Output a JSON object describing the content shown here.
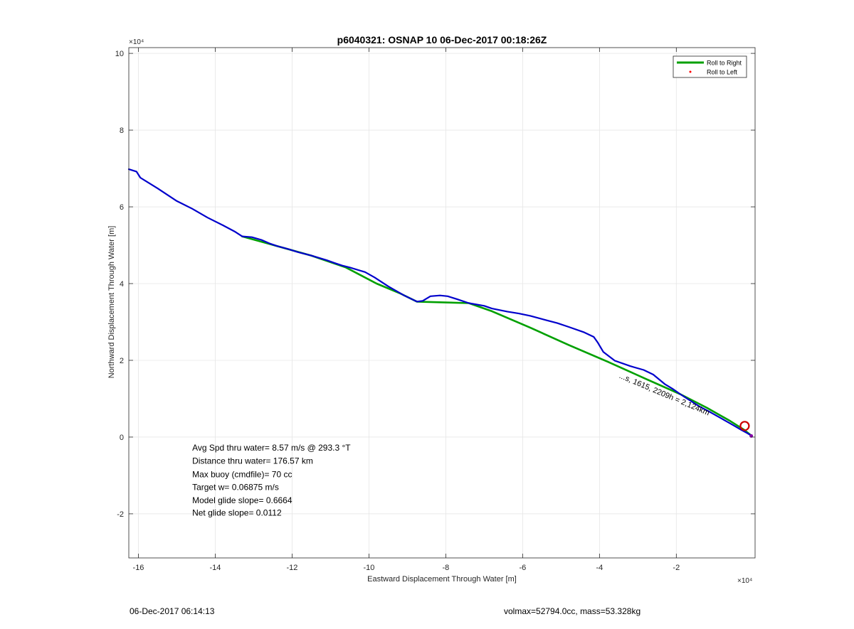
{
  "footer": {
    "left": "06-Dec-2017 06:14:13",
    "right": "volmax=52794.0cc, mass=53.328kg"
  },
  "chart_data": {
    "type": "line",
    "title": "p6040321: OSNAP 10 06-Dec-2017 00:18:26Z",
    "xlabel": "Eastward Displacement Through Water [m]",
    "ylabel": "Northward Displacement Through Water [m]",
    "x_exponent_label": "×10⁴",
    "y_exponent_label": "×10⁴",
    "xlim": [
      -16.25,
      0.05
    ],
    "ylim": [
      -3.15,
      10.15
    ],
    "xticks": [
      -16,
      -14,
      -12,
      -10,
      -8,
      -6,
      -4,
      -2
    ],
    "yticks": [
      -2,
      0,
      2,
      4,
      6,
      8,
      10
    ],
    "grid": true,
    "legend": {
      "placement": "top-right",
      "entries": [
        {
          "label": "Roll to Right",
          "color": "#00a000",
          "style": "line"
        },
        {
          "label": "Roll to Left",
          "color": "#ff0000",
          "style": "point"
        }
      ]
    },
    "series": [
      {
        "color": "#0000cc",
        "x": [
          -16.25,
          -16.05,
          -15.95,
          -15.5,
          -15.0,
          -14.6,
          -14.2,
          -13.8,
          -13.5,
          -13.3,
          -13.05,
          -12.8,
          -12.6,
          -12.4,
          -12.1,
          -11.85,
          -11.5,
          -11.1,
          -10.9,
          -10.7,
          -10.5,
          -10.1,
          -9.85,
          -9.5,
          -9.1,
          -8.75,
          -8.6,
          -8.4,
          -8.15,
          -7.95,
          -7.7,
          -7.4,
          -7.0,
          -6.8,
          -6.4,
          -6.1,
          -5.8,
          -5.4,
          -5.1,
          -4.8,
          -4.4,
          -4.15,
          -4.05,
          -3.9,
          -3.6,
          -3.2,
          -2.85,
          -2.6,
          -2.3,
          -2.1,
          -1.9,
          -1.7,
          -1.4,
          -1.1,
          -0.8,
          -0.5,
          -0.3,
          -0.15,
          -0.05
        ],
        "y": [
          6.98,
          6.92,
          6.76,
          6.48,
          6.15,
          5.95,
          5.72,
          5.52,
          5.36,
          5.23,
          5.21,
          5.14,
          5.05,
          4.98,
          4.9,
          4.82,
          4.73,
          4.61,
          4.54,
          4.47,
          4.42,
          4.3,
          4.16,
          3.93,
          3.7,
          3.53,
          3.55,
          3.67,
          3.69,
          3.67,
          3.59,
          3.49,
          3.42,
          3.35,
          3.27,
          3.22,
          3.16,
          3.05,
          2.97,
          2.87,
          2.73,
          2.61,
          2.47,
          2.22,
          1.99,
          1.85,
          1.75,
          1.63,
          1.38,
          1.26,
          1.12,
          0.99,
          0.8,
          0.64,
          0.47,
          0.3,
          0.18,
          0.1,
          0.04
        ]
      },
      {
        "name": "Roll to Right",
        "color": "#00a000",
        "x": [
          -13.3,
          -12.4,
          -11.5,
          -10.6,
          -9.8,
          -9.2,
          -8.75,
          -7.4,
          -6.8,
          -5.8,
          -4.8,
          -3.8,
          -2.8,
          -1.9,
          -1.2,
          -0.6,
          -0.25,
          -0.05
        ],
        "y": [
          5.23,
          4.98,
          4.73,
          4.42,
          4.0,
          3.75,
          3.53,
          3.49,
          3.28,
          2.85,
          2.4,
          1.97,
          1.52,
          1.12,
          0.76,
          0.42,
          0.2,
          0.04
        ]
      }
    ],
    "annotations": [
      {
        "text": "...s, 1615, 2209h = 2,124km",
        "x": -3.5,
        "y": 1.55,
        "rotation_deg": 23
      },
      {
        "text": "Avg Spd thru water=  8.57 m/s @ 293.3 °T",
        "x": -14.6,
        "y": -0.35
      },
      {
        "text": "Distance thru water= 176.57 km",
        "x": -14.6,
        "y": -0.7
      },
      {
        "text": "Max buoy (cmdfile)= 70 cc",
        "x": -14.6,
        "y": -1.05
      },
      {
        "text": "Target w= 0.06875 m/s",
        "x": -14.6,
        "y": -1.38
      },
      {
        "text": "Model glide slope= 0.6664",
        "x": -14.6,
        "y": -1.72
      },
      {
        "text": "Net glide slope= 0.0112",
        "x": -14.6,
        "y": -2.05
      }
    ],
    "markers": [
      {
        "type": "circle",
        "color": "#cc0000",
        "x": -0.22,
        "y": 0.29
      }
    ]
  }
}
